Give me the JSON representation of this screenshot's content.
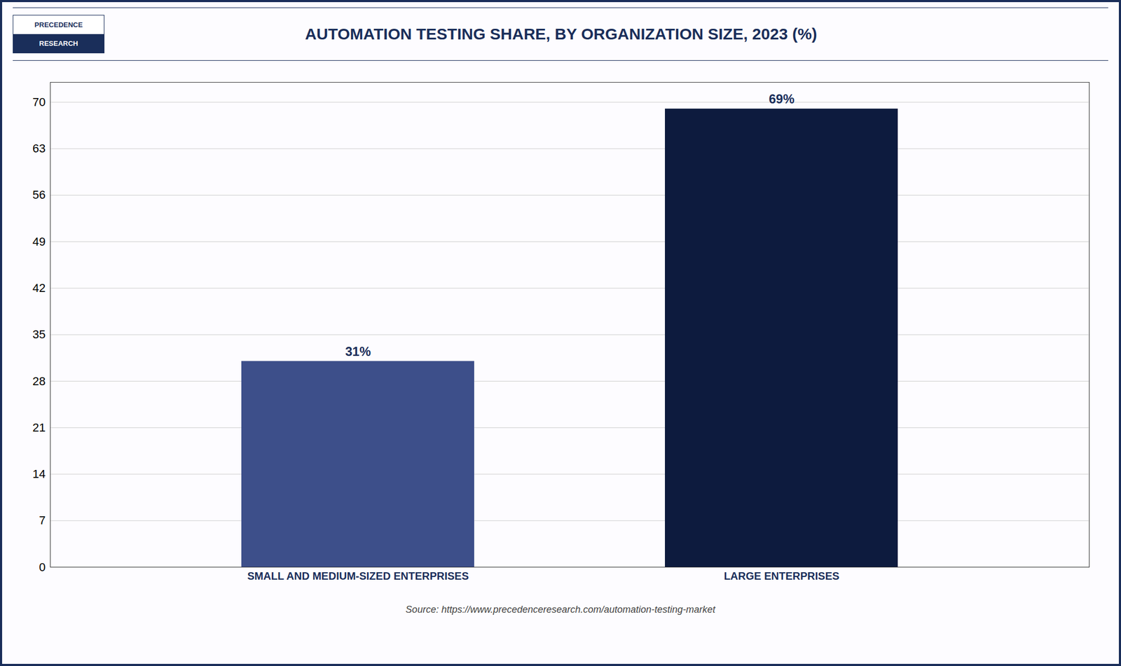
{
  "chart_data": {
    "type": "bar",
    "title": "AUTOMATION TESTING SHARE, BY ORGANIZATION SIZE, 2023 (%)",
    "annotations": [
      "PRECEDENCE",
      "RESEARCH"
    ],
    "source": "Source: https://www.precedenceresearch.com/automation-testing-market",
    "categories": [
      "SMALL AND MEDIUM-SIZED ENTERPRISES",
      "LARGE ENTERPRISES"
    ],
    "values": [
      31,
      69
    ],
    "value_labels": [
      "31%",
      "69%"
    ],
    "colors": [
      "#3d4f8a",
      "#0d1b3e"
    ],
    "ylim": [
      0,
      73
    ],
    "yticks": [
      0,
      7,
      14,
      21,
      28,
      35,
      42,
      49,
      56,
      63,
      70
    ],
    "grid": true,
    "data_labels": true
  }
}
